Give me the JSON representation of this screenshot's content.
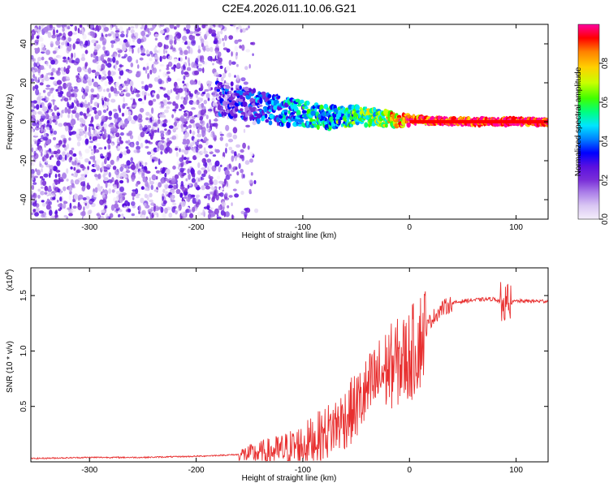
{
  "figure_title": "C2E4.2026.011.10.06.G21",
  "colors": {
    "snr_line": "#e83030",
    "colormap": [
      "#f4eefa",
      "#d9c6f3",
      "#a97be8",
      "#7a2fd8",
      "#5a10e0",
      "#0000ff",
      "#0080ff",
      "#00e5ff",
      "#00ff80",
      "#40ff00",
      "#c8ff00",
      "#ffd000",
      "#ff8000",
      "#ff0000",
      "#ff00a0"
    ]
  },
  "chart_data": [
    {
      "type": "heatmap",
      "title": "",
      "xlabel": "Height of straight line (km)",
      "ylabel": "Frequency (Hz)",
      "xlim": [
        -355,
        130
      ],
      "ylim": [
        -50,
        50
      ],
      "xticks": [
        -300,
        -200,
        -100,
        0,
        100
      ],
      "yticks": [
        -40,
        -20,
        0,
        20,
        40
      ],
      "colorbar": {
        "label": "Normalized spectral amplitude",
        "range": [
          0,
          1
        ],
        "ticks": [
          0.0,
          0.2,
          0.4,
          0.6,
          0.8
        ]
      },
      "signal_ridge": [
        {
          "x": -175,
          "freq": 12,
          "amp": 0.25
        },
        {
          "x": -150,
          "freq": 9,
          "amp": 0.3
        },
        {
          "x": -125,
          "freq": 6,
          "amp": 0.38
        },
        {
          "x": -100,
          "freq": 4,
          "amp": 0.45
        },
        {
          "x": -75,
          "freq": 2,
          "amp": 0.5
        },
        {
          "x": -50,
          "freq": 3,
          "amp": 0.55
        },
        {
          "x": -30,
          "freq": 2,
          "amp": 0.6
        },
        {
          "x": -10,
          "freq": 1,
          "amp": 0.8
        },
        {
          "x": 0,
          "freq": 1,
          "amp": 0.9
        },
        {
          "x": 50,
          "freq": 0,
          "amp": 0.95
        },
        {
          "x": 130,
          "freq": 0,
          "amp": 0.98
        }
      ]
    },
    {
      "type": "line",
      "title": "",
      "xlabel": "Height of straight line (km)",
      "ylabel": "SNR (10 * v/v)",
      "scale_note": "(x10",
      "scale_exponent": "4",
      "xlim": [
        -355,
        130
      ],
      "ylim": [
        0,
        1.75
      ],
      "xticks": [
        -300,
        -200,
        -100,
        0,
        100
      ],
      "yticks": [
        0.5,
        1.0,
        1.5
      ],
      "series": [
        {
          "x": [
            -355,
            -300,
            -250,
            -200,
            -150,
            -120,
            -100,
            -80,
            -60,
            -50,
            -40,
            -30,
            -20,
            -10,
            0,
            10,
            20,
            30,
            40,
            50,
            60,
            80,
            90,
            100,
            130
          ],
          "values": [
            0.03,
            0.04,
            0.04,
            0.05,
            0.07,
            0.1,
            0.15,
            0.25,
            0.4,
            0.5,
            0.62,
            0.75,
            0.85,
            0.9,
            0.95,
            1.1,
            1.28,
            1.38,
            1.43,
            1.45,
            1.46,
            1.47,
            1.42,
            1.45,
            1.45
          ]
        }
      ]
    }
  ]
}
